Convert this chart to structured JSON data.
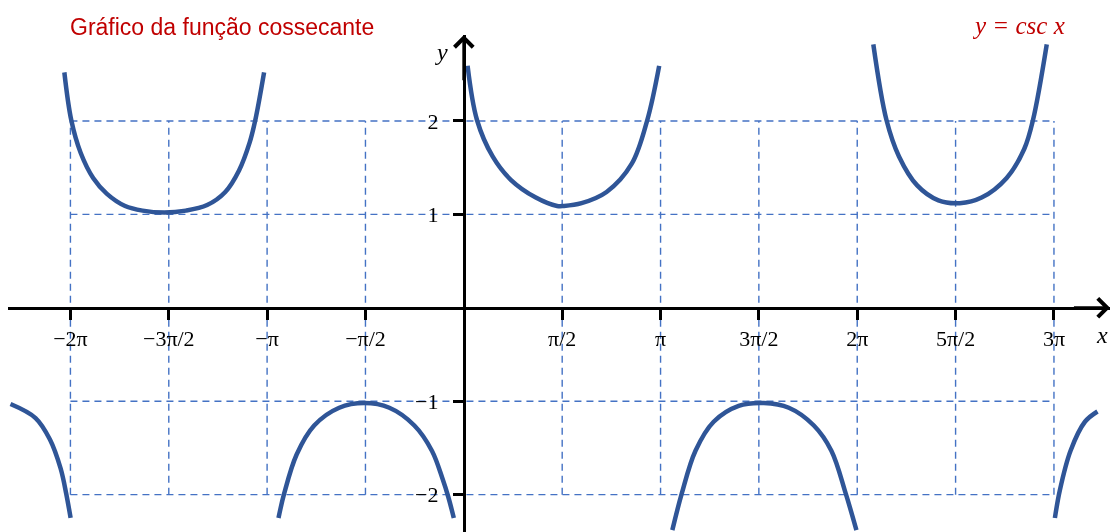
{
  "chart_data": {
    "type": "line",
    "title": "Gráfico da função cossecante",
    "xlabel": "x",
    "ylabel": "y",
    "annotations": [
      "y = csc x"
    ],
    "series": [
      {
        "color": "#2f5597",
        "x": [
          -7.24,
          -6.84,
          -6.61,
          -6.44,
          -6.35,
          -6.28,
          -6.283,
          -6.38,
          -6.27,
          -6.12,
          -5.92,
          -5.7,
          -5.41,
          -5.13,
          -4.78,
          -4.44,
          -4.1,
          -3.81,
          -3.59,
          -3.42,
          -3.33,
          -3.19,
          -3.142,
          -2.96,
          -2.87,
          -2.67,
          -2.39,
          -1.99,
          -1.59,
          -1.19,
          -0.79,
          -0.51,
          -0.34,
          -0.25,
          -0.16,
          0,
          0.06,
          0.21,
          0.46,
          0.75,
          1.15,
          1.49,
          1.6,
          1.88,
          2.28,
          2.68,
          2.93,
          3.12,
          3.142,
          3.33,
          3.48,
          3.7,
          3.99,
          4.39,
          4.79,
          5.19,
          5.59,
          5.87,
          6.1,
          6.27,
          6.283,
          6.54,
          6.75,
          6.95,
          7.24,
          7.58,
          7.92,
          8.27,
          8.67,
          8.95,
          9.09,
          9.31,
          9.425,
          9.44,
          9.52,
          9.69,
          9.92,
          10.12
        ],
        "values": [
          -1.03,
          -1.18,
          -1.41,
          -1.72,
          -1.99,
          -2.25,
          null,
          2.52,
          2.01,
          1.66,
          1.39,
          1.22,
          1.09,
          1.04,
          1.02,
          1.04,
          1.1,
          1.24,
          1.47,
          1.77,
          2.01,
          2.52,
          null,
          -2.25,
          -1.99,
          -1.57,
          -1.26,
          -1.07,
          -1.02,
          -1.07,
          -1.26,
          -1.53,
          -1.83,
          -2.02,
          -2.25,
          null,
          2.59,
          2.01,
          1.62,
          1.37,
          1.18,
          1.09,
          1.09,
          1.12,
          1.24,
          1.54,
          2.01,
          2.59,
          null,
          -2.38,
          -1.99,
          -1.53,
          -1.22,
          -1.05,
          -1.02,
          -1.07,
          -1.26,
          -1.53,
          -1.99,
          -2.38,
          null,
          2.82,
          2.01,
          1.62,
          1.31,
          1.15,
          1.12,
          1.18,
          1.39,
          1.7,
          2.01,
          2.82,
          null,
          -2.25,
          -1.95,
          -1.53,
          -1.22,
          -1.11
        ]
      }
    ],
    "xlim": [
      -7.28,
      10.32
    ],
    "ylim": [
      -2.4,
      2.92
    ],
    "xticks": [
      {
        "value": -6.283,
        "label": "−2π"
      },
      {
        "value": -4.712,
        "label": "−3π/2"
      },
      {
        "value": -3.142,
        "label": "−π"
      },
      {
        "value": -1.571,
        "label": "−π/2"
      },
      {
        "value": 1.571,
        "label": "π/2"
      },
      {
        "value": 3.142,
        "label": "π"
      },
      {
        "value": 4.712,
        "label": "3π/2"
      },
      {
        "value": 6.283,
        "label": "2π"
      },
      {
        "value": 7.854,
        "label": "5π/2"
      },
      {
        "value": 9.425,
        "label": "3π"
      }
    ],
    "yticks": [
      {
        "value": -2,
        "label": "−2"
      },
      {
        "value": -1,
        "label": "−1"
      },
      {
        "value": 1,
        "label": "1"
      },
      {
        "value": 2,
        "label": "2"
      }
    ],
    "grid": true
  }
}
